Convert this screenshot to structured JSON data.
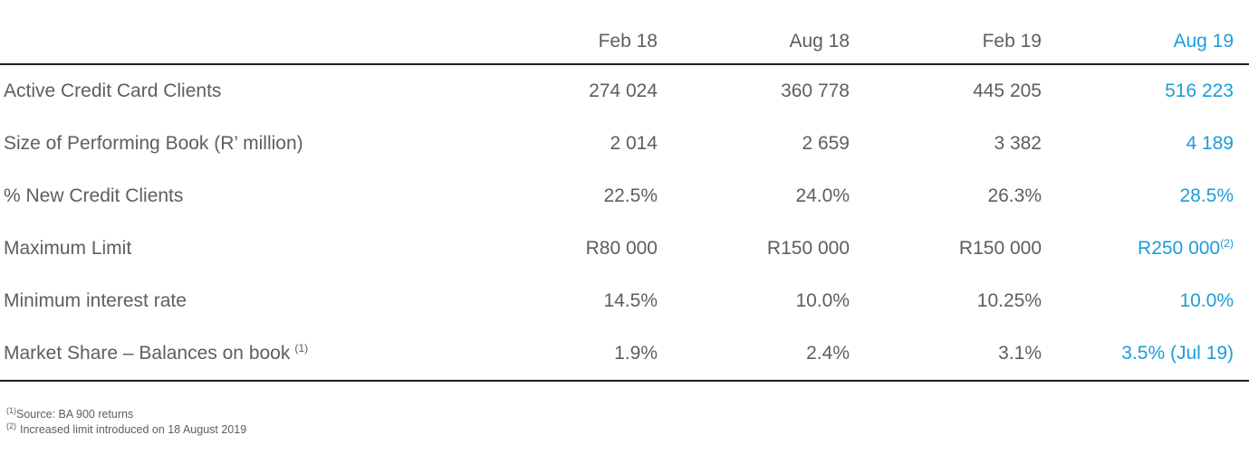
{
  "colors": {
    "accent_blue": "#1d9cd9",
    "text_gray": "#5d5e60",
    "rule_dark": "#1d1d1b"
  },
  "table": {
    "column_headers": [
      "Feb 18",
      "Aug 18",
      "Feb 19",
      "Aug 19"
    ],
    "rows": [
      {
        "label": "Active Credit Card Clients",
        "values": [
          "274 024",
          "360 778",
          "445 205",
          "516 223"
        ]
      },
      {
        "label": "Size of Performing Book (R’ million)",
        "values": [
          "2 014",
          "2 659",
          "3 382",
          "4 189"
        ]
      },
      {
        "label": "% New Credit Clients",
        "values": [
          "22.5%",
          "24.0%",
          "26.3%",
          "28.5%"
        ]
      },
      {
        "label": "Maximum Limit",
        "values": [
          "R80 000",
          "R150 000",
          "R150 000",
          "R250 000"
        ],
        "last_value_sup": "(2)"
      },
      {
        "label": "Minimum interest rate",
        "values": [
          "14.5%",
          "10.0%",
          "10.25%",
          "10.0%"
        ]
      },
      {
        "label": "Market Share – Balances on book",
        "label_sup": "(1)",
        "values": [
          "1.9%",
          "2.4%",
          "3.1%",
          "3.5% (Jul 19)"
        ]
      }
    ]
  },
  "footnotes": [
    {
      "sup": "(1)",
      "text": "Source: BA 900 returns"
    },
    {
      "sup": "(2)",
      "text": "Increased limit introduced on 18 August 2019"
    }
  ]
}
